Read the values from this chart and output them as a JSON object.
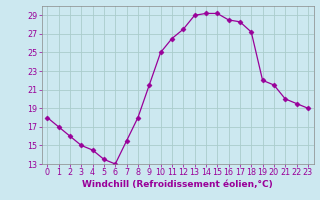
{
  "x": [
    0,
    1,
    2,
    3,
    4,
    5,
    6,
    7,
    8,
    9,
    10,
    11,
    12,
    13,
    14,
    15,
    16,
    17,
    18,
    19,
    20,
    21,
    22,
    23
  ],
  "y": [
    18.0,
    17.0,
    16.0,
    15.0,
    14.5,
    13.5,
    13.0,
    15.5,
    18.0,
    21.5,
    25.0,
    26.5,
    27.5,
    29.0,
    29.2,
    29.2,
    28.5,
    28.3,
    27.2,
    22.0,
    21.5,
    20.0,
    19.5,
    19.0
  ],
  "line_color": "#990099",
  "marker": "D",
  "marker_size": 2.5,
  "bg_color": "#cce8f0",
  "grid_color": "#aacccc",
  "xlabel": "Windchill (Refroidissement éolien,°C)",
  "xlabel_color": "#990099",
  "xlabel_fontsize": 6.5,
  "tick_color": "#990099",
  "tick_fontsize": 5.8,
  "ylim": [
    13,
    30
  ],
  "yticks": [
    13,
    15,
    17,
    19,
    21,
    23,
    25,
    27,
    29
  ],
  "xlim": [
    -0.5,
    23.5
  ],
  "xticks": [
    0,
    1,
    2,
    3,
    4,
    5,
    6,
    7,
    8,
    9,
    10,
    11,
    12,
    13,
    14,
    15,
    16,
    17,
    18,
    19,
    20,
    21,
    22,
    23
  ]
}
